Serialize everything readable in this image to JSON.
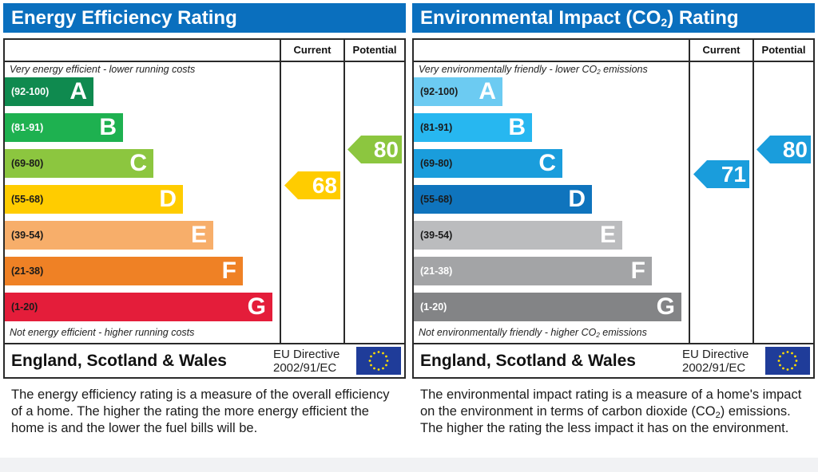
{
  "energy_efficiency": {
    "title": "Energy Efficiency Rating",
    "col_current": "Current",
    "col_potential": "Potential",
    "top_note": "Very energy efficient - lower running costs",
    "bottom_note": "Not energy efficient - higher running costs",
    "bands": [
      {
        "range": "(92-100)",
        "letter": "A",
        "color": "#0f8a4f",
        "range_color": "#ffffff"
      },
      {
        "range": "(81-91)",
        "letter": "B",
        "color": "#1eb150",
        "range_color": "#ffffff"
      },
      {
        "range": "(69-80)",
        "letter": "C",
        "color": "#8cc63f",
        "range_color": "#1a1a1a"
      },
      {
        "range": "(55-68)",
        "letter": "D",
        "color": "#ffcc00",
        "range_color": "#1a1a1a"
      },
      {
        "range": "(39-54)",
        "letter": "E",
        "color": "#f7ae6a",
        "range_color": "#1a1a1a"
      },
      {
        "range": "(21-38)",
        "letter": "F",
        "color": "#ef8125",
        "range_color": "#1a1a1a"
      },
      {
        "range": "(1-20)",
        "letter": "G",
        "color": "#e41d3a",
        "range_color": "#1a1a1a"
      }
    ],
    "current": {
      "value": "68",
      "band": "D",
      "color": "#ffcc00"
    },
    "potential": {
      "value": "80",
      "band": "C",
      "color": "#8cc63f"
    },
    "region": "England, Scotland & Wales",
    "directive_line1": "EU Directive",
    "directive_line2": "2002/91/EC",
    "description": "The energy efficiency rating is a measure of the overall efficiency of a home. The higher the rating the more energy efficient the home is and the lower the fuel bills will be."
  },
  "environmental_impact": {
    "title_pre": "Environmental Impact (CO",
    "title_sub": "2",
    "title_post": ") Rating",
    "col_current": "Current",
    "col_potential": "Potential",
    "top_note_pre": "Very environmentally friendly - lower CO",
    "top_note_sub": "2",
    "top_note_post": " emissions",
    "bottom_note_pre": "Not environmentally friendly - higher CO",
    "bottom_note_sub": "2",
    "bottom_note_post": " emissions",
    "bands": [
      {
        "range": "(92-100)",
        "letter": "A",
        "color": "#6ccbf2",
        "range_color": "#1a1a1a"
      },
      {
        "range": "(81-91)",
        "letter": "B",
        "color": "#27b7f0",
        "range_color": "#1a1a1a"
      },
      {
        "range": "(69-80)",
        "letter": "C",
        "color": "#1a9ddc",
        "range_color": "#1a1a1a"
      },
      {
        "range": "(55-68)",
        "letter": "D",
        "color": "#0f74bd",
        "range_color": "#1a1a1a"
      },
      {
        "range": "(39-54)",
        "letter": "E",
        "color": "#bbbcbe",
        "range_color": "#1a1a1a"
      },
      {
        "range": "(21-38)",
        "letter": "F",
        "color": "#a3a4a6",
        "range_color": "#ffffff"
      },
      {
        "range": "(1-20)",
        "letter": "G",
        "color": "#838486",
        "range_color": "#ffffff"
      }
    ],
    "current": {
      "value": "71",
      "band": "C",
      "color": "#1a9ddc"
    },
    "potential": {
      "value": "80",
      "band": "C",
      "color": "#1a9ddc"
    },
    "region": "England, Scotland & Wales",
    "directive_line1": "EU Directive",
    "directive_line2": "2002/91/EC",
    "description_pre": "The environmental impact rating is a measure of a home's impact on the environment in terms of carbon dioxide (CO",
    "description_sub": "2",
    "description_post": ") emissions. The higher the rating the less impact it has on the environment."
  }
}
